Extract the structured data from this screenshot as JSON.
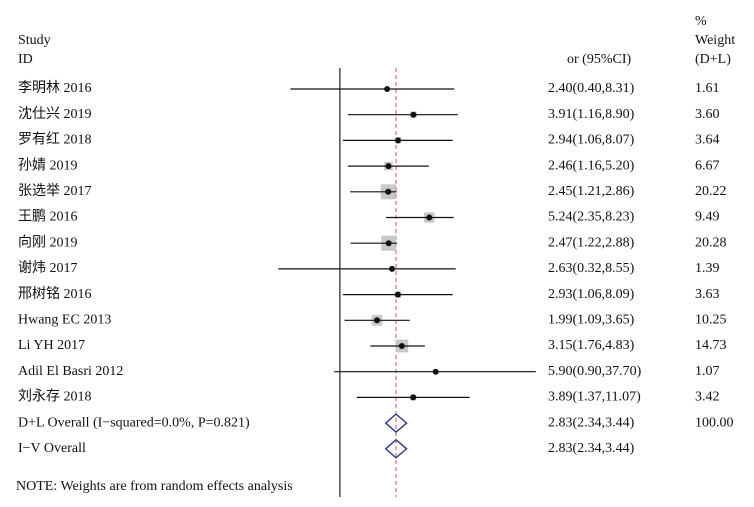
{
  "chart_data": {
    "type": "forest",
    "header": {
      "study": "Study",
      "id": "ID",
      "estimate": "or (95%CI)",
      "pct": "%",
      "weight": "Weight",
      "method": "(D+L)"
    },
    "log_scale": true,
    "xlim": [
      0.2,
      40
    ],
    "null_value": 1,
    "studies": [
      {
        "name": "李明林 2016",
        "value": 2.4,
        "lo": 0.4,
        "hi": 8.31,
        "label": "2.40(0.40,8.31)",
        "weight": 1.61,
        "weight_label": "1.61"
      },
      {
        "name": "沈仕兴 2019",
        "value": 3.91,
        "lo": 1.16,
        "hi": 8.9,
        "label": "3.91(1.16,8.90)",
        "weight": 3.6,
        "weight_label": "3.60"
      },
      {
        "name": "罗有红 2018",
        "value": 2.94,
        "lo": 1.06,
        "hi": 8.07,
        "label": "2.94(1.06,8.07)",
        "weight": 3.64,
        "weight_label": "3.64"
      },
      {
        "name": "孙婧 2019",
        "value": 2.46,
        "lo": 1.16,
        "hi": 5.2,
        "label": "2.46(1.16,5.20)",
        "weight": 6.67,
        "weight_label": "6.67"
      },
      {
        "name": "张选举 2017",
        "value": 2.45,
        "lo": 1.21,
        "hi": 2.86,
        "label": "2.45(1.21,2.86)",
        "weight": 20.22,
        "weight_label": "20.22"
      },
      {
        "name": "王鹏 2016",
        "value": 5.24,
        "lo": 2.35,
        "hi": 8.23,
        "label": "5.24(2.35,8.23)",
        "weight": 9.49,
        "weight_label": "9.49"
      },
      {
        "name": "向刚 2019",
        "value": 2.47,
        "lo": 1.22,
        "hi": 2.88,
        "label": "2.47(1.22,2.88)",
        "weight": 20.28,
        "weight_label": "20.28"
      },
      {
        "name": "谢炜 2017",
        "value": 2.63,
        "lo": 0.32,
        "hi": 8.55,
        "label": "2.63(0.32,8.55)",
        "weight": 1.39,
        "weight_label": "1.39"
      },
      {
        "name": "邢树铭 2016",
        "value": 2.93,
        "lo": 1.06,
        "hi": 8.09,
        "label": "2.93(1.06,8.09)",
        "weight": 3.63,
        "weight_label": "3.63"
      },
      {
        "name": "Hwang EC 2013",
        "value": 1.99,
        "lo": 1.09,
        "hi": 3.65,
        "label": "1.99(1.09,3.65)",
        "weight": 10.25,
        "weight_label": "10.25"
      },
      {
        "name": "Li YH 2017",
        "value": 3.15,
        "lo": 1.76,
        "hi": 4.83,
        "label": "3.15(1.76,4.83)",
        "weight": 14.73,
        "weight_label": "14.73"
      },
      {
        "name": "Adil El Basri 2012",
        "value": 5.9,
        "lo": 0.9,
        "hi": 37.7,
        "label": "5.90(0.90,37.70)",
        "weight": 1.07,
        "weight_label": "1.07"
      },
      {
        "name": "刘永存 2018",
        "value": 3.89,
        "lo": 1.37,
        "hi": 11.07,
        "label": "3.89(1.37,11.07)",
        "weight": 3.42,
        "weight_label": "3.42"
      }
    ],
    "overall": [
      {
        "name": "D+L Overall (I−squared=0.0%, P=0.821)",
        "value": 2.83,
        "lo": 2.34,
        "hi": 3.44,
        "label": "2.83(2.34,3.44)",
        "weight_label": "100.00"
      },
      {
        "name": "I−V Overall",
        "value": 2.83,
        "lo": 2.34,
        "hi": 3.44,
        "label": "2.83(2.34,3.44)"
      }
    ],
    "note": "NOTE: Weights are from random effects analysis"
  }
}
